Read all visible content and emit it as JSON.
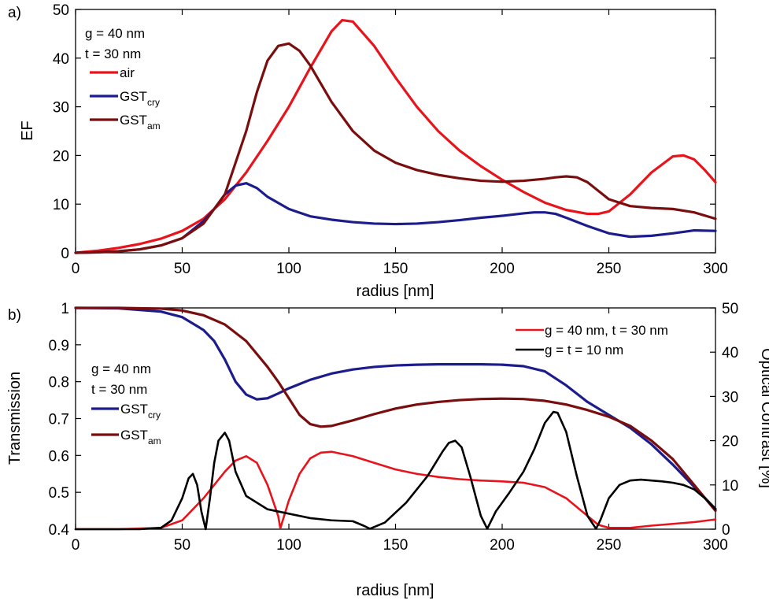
{
  "colors": {
    "air": "#e8141c",
    "cry": "#1c1c8c",
    "am": "#7a0e0e",
    "thin": "#000000",
    "axis": "#000000"
  },
  "chart_data": [
    {
      "panel_label": "a)",
      "type": "line",
      "xlabel": "radius [nm]",
      "ylabel": "EF",
      "xlim": [
        0,
        300
      ],
      "ylim": [
        0,
        50
      ],
      "xticks": [
        "0",
        "50",
        "100",
        "150",
        "200",
        "250",
        "300"
      ],
      "yticks": [
        "0",
        "10",
        "20",
        "30",
        "40",
        "50"
      ],
      "grid": false,
      "legend_position": "top-left",
      "annotations": [
        "g = 40 nm",
        "t = 30 nm"
      ],
      "series": [
        {
          "name": "air",
          "color_key": "air",
          "x": [
            0,
            10,
            20,
            30,
            40,
            50,
            60,
            70,
            80,
            90,
            100,
            110,
            120,
            125,
            130,
            140,
            150,
            160,
            170,
            180,
            190,
            200,
            210,
            220,
            230,
            240,
            245,
            250,
            260,
            270,
            280,
            285,
            290,
            295,
            300
          ],
          "y": [
            0,
            0.4,
            1.0,
            1.8,
            2.9,
            4.5,
            7.0,
            11.0,
            16.5,
            23.0,
            30.0,
            38.0,
            45.5,
            47.8,
            47.5,
            42.5,
            36.0,
            30.0,
            25.0,
            21.0,
            17.8,
            15.0,
            12.5,
            10.3,
            8.8,
            8.0,
            8.0,
            8.5,
            12.0,
            16.5,
            19.8,
            20.0,
            19.2,
            17.0,
            14.5
          ]
        },
        {
          "name": "GST",
          "name_sub": "cry",
          "color_key": "cry",
          "x": [
            0,
            10,
            20,
            30,
            40,
            50,
            60,
            65,
            70,
            75,
            80,
            85,
            90,
            100,
            110,
            120,
            130,
            140,
            150,
            160,
            170,
            180,
            190,
            200,
            210,
            215,
            220,
            225,
            230,
            240,
            250,
            260,
            270,
            280,
            290,
            300
          ],
          "y": [
            0,
            0.1,
            0.3,
            0.7,
            1.5,
            3.0,
            6.5,
            9.0,
            12.0,
            13.8,
            14.3,
            13.3,
            11.5,
            9.0,
            7.5,
            6.8,
            6.3,
            6.0,
            5.9,
            6.0,
            6.3,
            6.7,
            7.2,
            7.6,
            8.1,
            8.3,
            8.3,
            8.0,
            7.2,
            5.5,
            4.0,
            3.3,
            3.5,
            4.0,
            4.6,
            4.5
          ]
        },
        {
          "name": "GST",
          "name_sub": "am",
          "color_key": "am",
          "x": [
            0,
            10,
            20,
            30,
            40,
            50,
            60,
            70,
            80,
            85,
            90,
            95,
            100,
            105,
            110,
            120,
            130,
            140,
            150,
            160,
            170,
            180,
            190,
            200,
            210,
            220,
            225,
            230,
            235,
            240,
            250,
            260,
            270,
            280,
            290,
            300
          ],
          "y": [
            0,
            0.1,
            0.3,
            0.7,
            1.5,
            3.0,
            6.0,
            12.0,
            25.0,
            33.0,
            39.5,
            42.5,
            43.0,
            41.5,
            38.5,
            31.0,
            25.0,
            21.0,
            18.5,
            17.0,
            16.0,
            15.3,
            14.8,
            14.6,
            14.8,
            15.2,
            15.5,
            15.7,
            15.5,
            14.5,
            11.0,
            9.6,
            9.2,
            9.0,
            8.3,
            7.0
          ]
        }
      ]
    },
    {
      "panel_label": "b)",
      "type": "line",
      "xlabel": "radius [nm]",
      "ylabel": "Transmission",
      "y2label": "Optical Contrast [%]",
      "xlim": [
        0,
        300
      ],
      "ylim": [
        0.4,
        1.0
      ],
      "y2lim": [
        0,
        50
      ],
      "xticks": [
        "0",
        "50",
        "100",
        "150",
        "200",
        "250",
        "300"
      ],
      "yticks": [
        "0.4",
        "0.5",
        "0.6",
        "0.7",
        "0.8",
        "0.9",
        "1"
      ],
      "y2ticks": [
        "0",
        "10",
        "20",
        "30",
        "40",
        "50"
      ],
      "grid": false,
      "legend_left_position": "middle-left",
      "legend_right_position": "top-right",
      "annotations": [
        "g = 40 nm",
        "t = 30 nm"
      ],
      "series": [
        {
          "name": "GST",
          "name_sub": "cry",
          "axis": "left",
          "color_key": "cry",
          "x": [
            0,
            20,
            40,
            50,
            60,
            65,
            70,
            75,
            80,
            85,
            90,
            95,
            100,
            110,
            120,
            130,
            140,
            150,
            160,
            170,
            180,
            190,
            200,
            210,
            220,
            230,
            240,
            250,
            260,
            270,
            280,
            290,
            300
          ],
          "y": [
            1.0,
            0.999,
            0.99,
            0.975,
            0.94,
            0.91,
            0.86,
            0.8,
            0.765,
            0.752,
            0.755,
            0.768,
            0.782,
            0.805,
            0.822,
            0.833,
            0.84,
            0.844,
            0.846,
            0.847,
            0.847,
            0.847,
            0.846,
            0.842,
            0.828,
            0.79,
            0.745,
            0.71,
            0.675,
            0.63,
            0.575,
            0.515,
            0.455
          ]
        },
        {
          "name": "GST",
          "name_sub": "am",
          "axis": "left",
          "color_key": "am",
          "x": [
            0,
            20,
            40,
            50,
            60,
            70,
            80,
            90,
            95,
            100,
            105,
            110,
            115,
            120,
            130,
            140,
            150,
            160,
            170,
            180,
            190,
            200,
            210,
            220,
            230,
            240,
            250,
            260,
            270,
            280,
            290,
            300
          ],
          "y": [
            1.0,
            1.0,
            0.998,
            0.993,
            0.98,
            0.955,
            0.91,
            0.84,
            0.8,
            0.755,
            0.71,
            0.685,
            0.678,
            0.68,
            0.695,
            0.712,
            0.727,
            0.738,
            0.745,
            0.75,
            0.753,
            0.754,
            0.753,
            0.748,
            0.738,
            0.723,
            0.705,
            0.68,
            0.64,
            0.59,
            0.52,
            0.45
          ]
        },
        {
          "name": "g = 40 nm, t = 30 nm",
          "axis": "right",
          "color_key": "air",
          "x": [
            0,
            20,
            40,
            50,
            60,
            70,
            75,
            80,
            85,
            90,
            95,
            96,
            100,
            105,
            110,
            115,
            120,
            130,
            140,
            150,
            160,
            170,
            180,
            190,
            200,
            210,
            220,
            230,
            240,
            245,
            250,
            260,
            270,
            280,
            290,
            300
          ],
          "y": [
            0,
            0,
            0.3,
            2.0,
            7.0,
            13.0,
            15.5,
            16.5,
            15.0,
            10.0,
            3.0,
            0.2,
            6.5,
            12.5,
            16.0,
            17.3,
            17.5,
            16.5,
            15.0,
            13.5,
            12.5,
            11.8,
            11.3,
            11.0,
            10.8,
            10.5,
            9.5,
            7.0,
            3.0,
            1.0,
            0.3,
            0.3,
            0.8,
            1.2,
            1.6,
            2.2
          ]
        },
        {
          "name": "g = t = 10 nm",
          "axis": "right",
          "color_key": "thin",
          "x": [
            0,
            30,
            40,
            45,
            50,
            53,
            55,
            57,
            59,
            61,
            63,
            65,
            67,
            70,
            72,
            75,
            80,
            90,
            100,
            110,
            120,
            130,
            135,
            138,
            145,
            155,
            165,
            172,
            175,
            178,
            181,
            185,
            190,
            193,
            197,
            203,
            210,
            215,
            220,
            224,
            226,
            230,
            235,
            240,
            244,
            246,
            250,
            255,
            260,
            265,
            270,
            275,
            280,
            285,
            290,
            295,
            300
          ],
          "y": [
            0,
            0,
            0.3,
            2.0,
            7.0,
            11.5,
            12.5,
            10.0,
            4.0,
            0,
            7.0,
            15.0,
            20.0,
            21.8,
            20.0,
            13.0,
            7.5,
            4.5,
            3.5,
            2.5,
            2.0,
            1.8,
            0.8,
            0.1,
            1.5,
            6.0,
            12.0,
            17.5,
            19.5,
            20.0,
            18.5,
            12.0,
            3.0,
            0.1,
            4.0,
            8.0,
            13.0,
            18.0,
            24.0,
            26.5,
            26.3,
            22.0,
            12.0,
            3.0,
            0.1,
            2.0,
            7.0,
            10.0,
            11.0,
            11.2,
            11.0,
            10.8,
            10.5,
            10.0,
            9.0,
            7.0,
            4.5
          ]
        }
      ]
    }
  ]
}
